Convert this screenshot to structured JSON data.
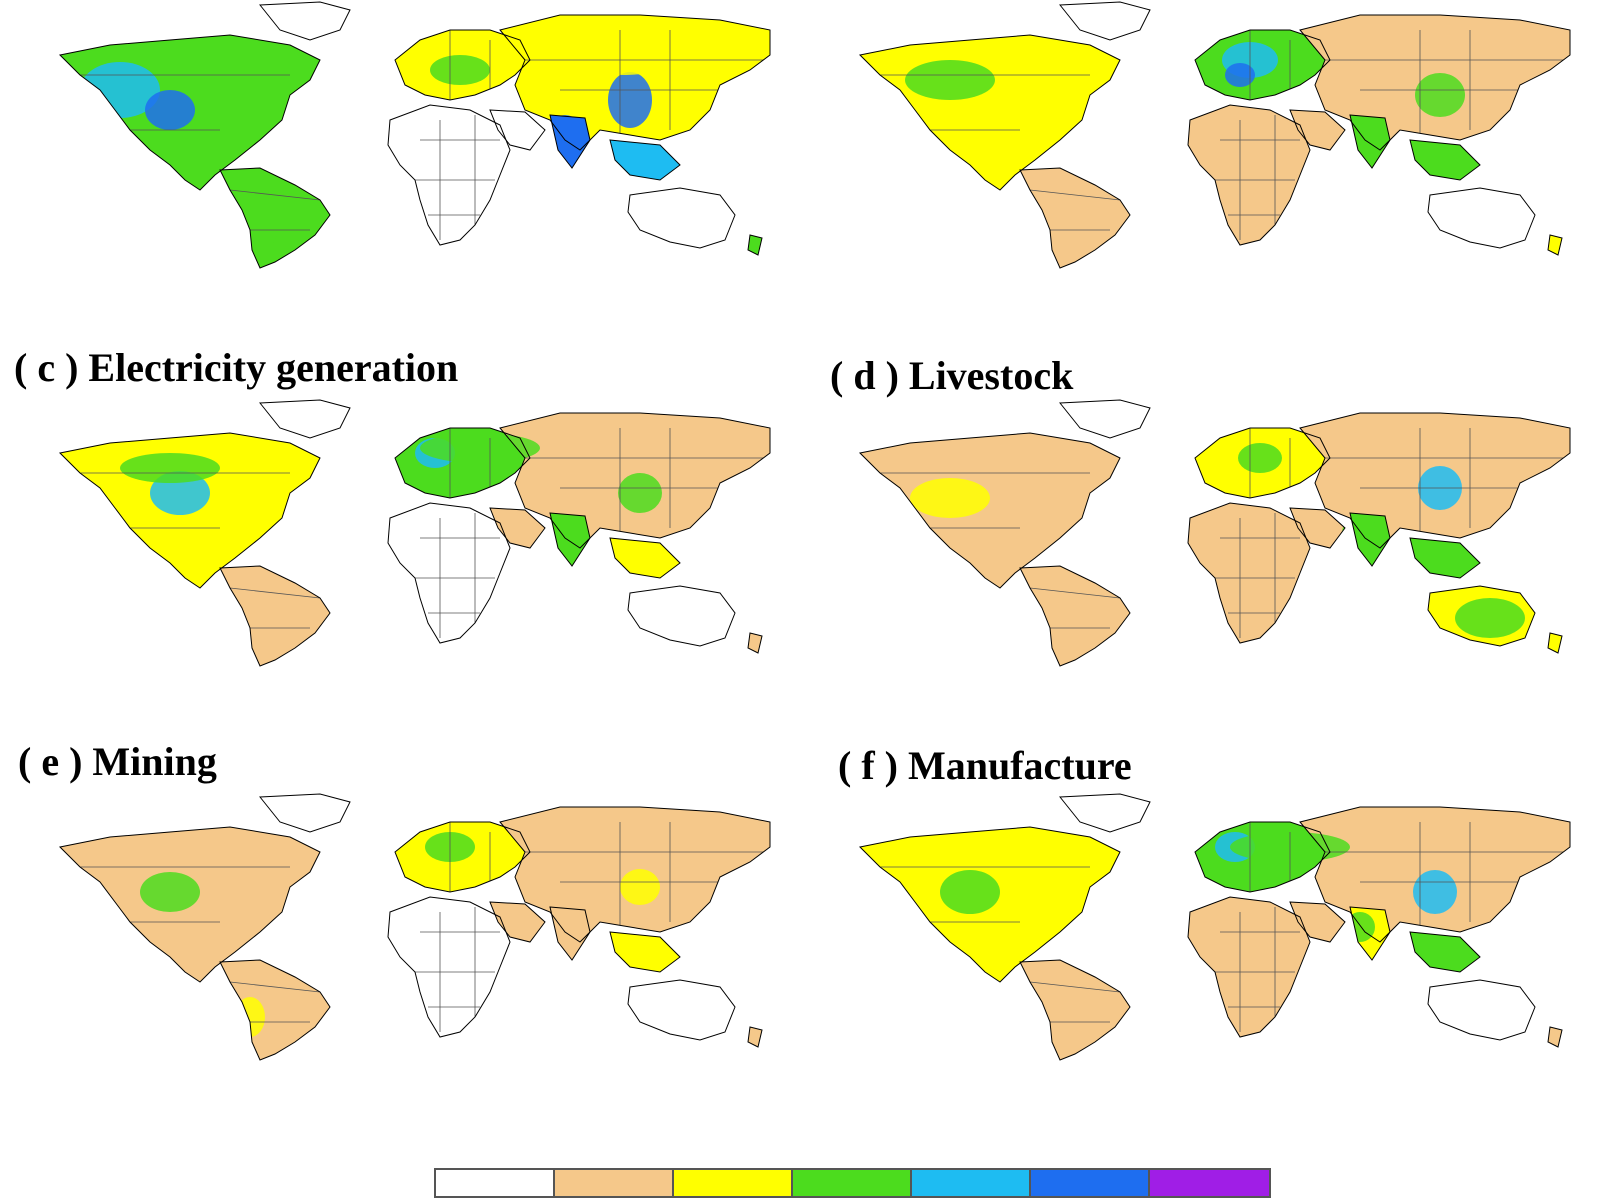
{
  "panels": [
    {
      "id": "a",
      "title": "",
      "label_shown": false
    },
    {
      "id": "b",
      "title": "",
      "label_shown": false
    },
    {
      "id": "c",
      "title": "( c ) Electricity generation"
    },
    {
      "id": "d",
      "title": "( d ) Livestock"
    },
    {
      "id": "e",
      "title": "( e ) Mining"
    },
    {
      "id": "f",
      "title": "( f ) Manufacture"
    }
  ],
  "legend": {
    "colors": [
      "#ffffff",
      "#f5c88a",
      "#ffff00",
      "#4cdc1e",
      "#1ebcf2",
      "#1e6ef0",
      "#a01ee6"
    ],
    "labels_shown": false
  },
  "map_style": {
    "ocean": "#ffffff",
    "coastline": "#000000",
    "border": "#555555"
  }
}
